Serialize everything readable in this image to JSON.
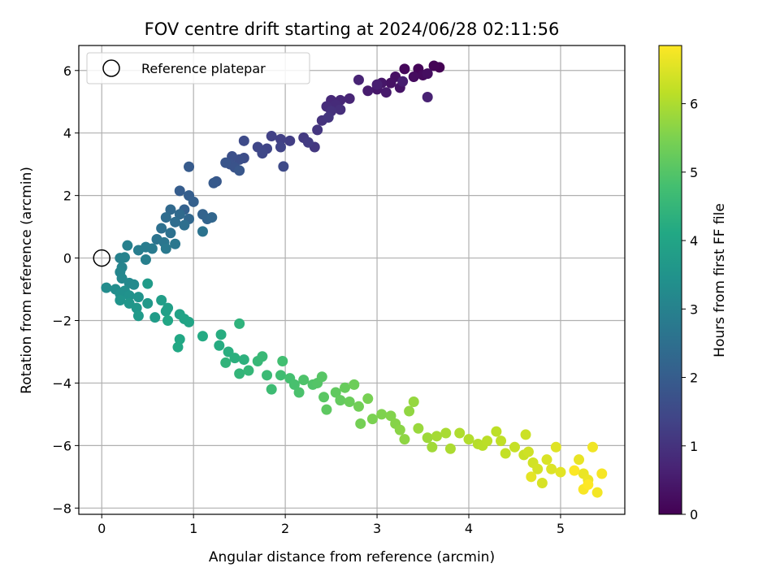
{
  "chart_data": {
    "type": "scatter",
    "title": "FOV centre drift starting at 2024/06/28 02:11:56",
    "xlabel": "Angular distance from reference (arcmin)",
    "ylabel": "Rotation from reference (arcmin)",
    "xlim": [
      -0.25,
      5.7
    ],
    "ylim": [
      -8.2,
      6.8
    ],
    "x_ticks": [
      0,
      1,
      2,
      3,
      4,
      5
    ],
    "y_ticks": [
      -8,
      -6,
      -4,
      -2,
      0,
      2,
      4,
      6
    ],
    "grid": true,
    "legend": {
      "location": "upper-left",
      "entries": [
        "Reference platepar"
      ]
    },
    "reference_point": {
      "x": 0,
      "y": 0,
      "label": "Reference platepar"
    },
    "colorbar": {
      "label": "Hours from first FF file",
      "colormap": "viridis",
      "range": [
        0,
        6.85
      ],
      "ticks": [
        0,
        1,
        2,
        3,
        4,
        5,
        6
      ]
    },
    "series": [
      {
        "color_by": "hours",
        "points": [
          [
            3.68,
            6.1,
            0.0
          ],
          [
            3.62,
            6.15,
            0.03
          ],
          [
            3.45,
            6.05,
            0.08
          ],
          [
            3.3,
            6.05,
            0.12
          ],
          [
            3.5,
            5.85,
            0.17
          ],
          [
            3.4,
            5.8,
            0.21
          ],
          [
            3.55,
            5.9,
            0.25
          ],
          [
            3.2,
            5.8,
            0.29
          ],
          [
            3.15,
            5.6,
            0.33
          ],
          [
            3.25,
            5.45,
            0.37
          ],
          [
            3.05,
            5.6,
            0.41
          ],
          [
            3.0,
            5.4,
            0.45
          ],
          [
            3.1,
            5.3,
            0.49
          ],
          [
            2.9,
            5.35,
            0.53
          ],
          [
            3.28,
            5.65,
            0.57
          ],
          [
            3.0,
            5.55,
            0.61
          ],
          [
            3.55,
            5.15,
            0.64
          ],
          [
            2.8,
            5.7,
            0.68
          ],
          [
            2.7,
            5.1,
            0.72
          ],
          [
            2.6,
            5.05,
            0.76
          ],
          [
            2.5,
            5.05,
            0.8
          ],
          [
            2.55,
            4.9,
            0.84
          ],
          [
            2.45,
            4.85,
            0.88
          ],
          [
            2.6,
            4.75,
            0.92
          ],
          [
            2.5,
            4.7,
            0.96
          ],
          [
            2.4,
            4.4,
            1.0
          ],
          [
            2.47,
            4.5,
            1.04
          ],
          [
            2.35,
            4.1,
            1.08
          ],
          [
            2.32,
            3.55,
            1.12
          ],
          [
            2.2,
            3.85,
            1.16
          ],
          [
            2.25,
            3.7,
            1.2
          ],
          [
            2.05,
            3.75,
            1.24
          ],
          [
            1.95,
            3.8,
            1.28
          ],
          [
            1.85,
            3.9,
            1.32
          ],
          [
            1.95,
            3.55,
            1.36
          ],
          [
            1.8,
            3.5,
            1.4
          ],
          [
            1.7,
            3.55,
            1.44
          ],
          [
            1.75,
            3.35,
            1.48
          ],
          [
            1.98,
            2.93,
            1.52
          ],
          [
            1.55,
            3.75,
            1.56
          ],
          [
            1.55,
            3.2,
            1.6
          ],
          [
            1.5,
            3.15,
            1.64
          ],
          [
            1.42,
            3.25,
            1.68
          ],
          [
            1.4,
            3.0,
            1.72
          ],
          [
            1.45,
            2.9,
            1.76
          ],
          [
            1.35,
            3.05,
            1.8
          ],
          [
            1.5,
            2.8,
            1.84
          ],
          [
            1.25,
            2.45,
            1.88
          ],
          [
            1.22,
            2.4,
            1.92
          ],
          [
            0.95,
            2.92,
            1.96
          ],
          [
            0.85,
            2.15,
            2.0
          ],
          [
            0.95,
            2.0,
            2.04
          ],
          [
            1.0,
            1.8,
            2.08
          ],
          [
            0.9,
            1.55,
            2.12
          ],
          [
            1.1,
            1.4,
            2.16
          ],
          [
            1.15,
            1.25,
            2.2
          ],
          [
            1.2,
            1.3,
            2.24
          ],
          [
            0.95,
            1.25,
            2.28
          ],
          [
            0.75,
            1.55,
            2.32
          ],
          [
            0.85,
            1.4,
            2.36
          ],
          [
            0.7,
            1.3,
            2.4
          ],
          [
            0.8,
            1.15,
            2.44
          ],
          [
            0.9,
            1.05,
            2.48
          ],
          [
            0.65,
            0.95,
            2.52
          ],
          [
            0.75,
            0.8,
            2.56
          ],
          [
            1.1,
            0.85,
            2.6
          ],
          [
            0.6,
            0.6,
            2.64
          ],
          [
            0.68,
            0.5,
            2.68
          ],
          [
            0.8,
            0.45,
            2.72
          ],
          [
            0.7,
            0.3,
            2.76
          ],
          [
            0.55,
            0.3,
            2.8
          ],
          [
            0.48,
            0.35,
            2.84
          ],
          [
            0.4,
            0.25,
            2.88
          ],
          [
            0.48,
            -0.05,
            2.92
          ],
          [
            0.28,
            0.4,
            2.96
          ],
          [
            0.2,
            0.0,
            3.0
          ],
          [
            0.25,
            0.02,
            3.04
          ],
          [
            0.22,
            -0.3,
            3.08
          ],
          [
            0.2,
            -0.45,
            3.12
          ],
          [
            0.22,
            -0.65,
            3.16
          ],
          [
            0.3,
            -0.8,
            3.2
          ],
          [
            0.35,
            -0.85,
            3.24
          ],
          [
            0.05,
            -0.95,
            3.28
          ],
          [
            0.15,
            -1.0,
            3.32
          ],
          [
            0.25,
            -1.05,
            3.36
          ],
          [
            0.2,
            -1.15,
            3.4
          ],
          [
            0.3,
            -1.2,
            3.44
          ],
          [
            0.4,
            -1.25,
            3.48
          ],
          [
            0.2,
            -1.35,
            3.52
          ],
          [
            0.3,
            -1.45,
            3.56
          ],
          [
            0.38,
            -1.6,
            3.6
          ],
          [
            0.5,
            -1.45,
            3.64
          ],
          [
            0.4,
            -1.85,
            3.68
          ],
          [
            0.5,
            -0.82,
            3.72
          ],
          [
            0.58,
            -1.9,
            3.76
          ],
          [
            0.65,
            -1.35,
            3.8
          ],
          [
            0.72,
            -1.6,
            3.84
          ],
          [
            0.7,
            -1.7,
            3.88
          ],
          [
            0.85,
            -1.8,
            3.92
          ],
          [
            0.9,
            -1.95,
            3.96
          ],
          [
            0.95,
            -2.05,
            4.0
          ],
          [
            0.72,
            -2.0,
            4.04
          ],
          [
            0.85,
            -2.6,
            4.08
          ],
          [
            0.83,
            -2.85,
            4.12
          ],
          [
            1.1,
            -2.5,
            4.16
          ],
          [
            1.28,
            -2.8,
            4.2
          ],
          [
            1.3,
            -2.45,
            4.24
          ],
          [
            1.38,
            -3.0,
            4.28
          ],
          [
            1.45,
            -3.2,
            4.32
          ],
          [
            1.55,
            -3.25,
            4.36
          ],
          [
            1.5,
            -2.1,
            4.4
          ],
          [
            1.35,
            -3.35,
            4.44
          ],
          [
            1.5,
            -3.7,
            4.48
          ],
          [
            1.6,
            -3.6,
            4.52
          ],
          [
            1.7,
            -3.3,
            4.56
          ],
          [
            1.75,
            -3.15,
            4.6
          ],
          [
            1.8,
            -3.75,
            4.64
          ],
          [
            1.85,
            -4.2,
            4.68
          ],
          [
            1.95,
            -3.75,
            4.72
          ],
          [
            1.97,
            -3.3,
            4.76
          ],
          [
            2.05,
            -3.85,
            4.8
          ],
          [
            2.1,
            -4.05,
            4.84
          ],
          [
            2.15,
            -4.3,
            4.88
          ],
          [
            2.2,
            -3.9,
            4.92
          ],
          [
            2.3,
            -4.05,
            4.96
          ],
          [
            2.35,
            -4.0,
            5.0
          ],
          [
            2.4,
            -3.8,
            5.04
          ],
          [
            2.42,
            -4.45,
            5.08
          ],
          [
            2.45,
            -4.85,
            5.12
          ],
          [
            2.55,
            -4.3,
            5.16
          ],
          [
            2.6,
            -4.55,
            5.2
          ],
          [
            2.65,
            -4.15,
            5.24
          ],
          [
            2.7,
            -4.6,
            5.28
          ],
          [
            2.75,
            -4.05,
            5.32
          ],
          [
            2.8,
            -4.75,
            5.36
          ],
          [
            2.82,
            -5.3,
            5.4
          ],
          [
            2.9,
            -4.5,
            5.44
          ],
          [
            2.95,
            -5.15,
            5.48
          ],
          [
            3.05,
            -5.0,
            5.52
          ],
          [
            3.15,
            -5.05,
            5.56
          ],
          [
            3.2,
            -5.3,
            5.6
          ],
          [
            3.25,
            -5.5,
            5.64
          ],
          [
            3.3,
            -5.8,
            5.68
          ],
          [
            3.35,
            -4.9,
            5.72
          ],
          [
            3.4,
            -4.6,
            5.76
          ],
          [
            3.45,
            -5.45,
            5.8
          ],
          [
            3.55,
            -5.75,
            5.84
          ],
          [
            3.6,
            -6.05,
            5.88
          ],
          [
            3.65,
            -5.7,
            5.92
          ],
          [
            3.75,
            -5.6,
            5.96
          ],
          [
            3.8,
            -6.1,
            5.99
          ],
          [
            3.9,
            -5.6,
            6.02
          ],
          [
            4.0,
            -5.8,
            6.05
          ],
          [
            4.1,
            -5.95,
            6.08
          ],
          [
            4.15,
            -6.0,
            6.11
          ],
          [
            4.2,
            -5.85,
            6.14
          ],
          [
            4.3,
            -5.55,
            6.17
          ],
          [
            4.35,
            -5.85,
            6.2
          ],
          [
            4.4,
            -6.25,
            6.23
          ],
          [
            4.5,
            -6.05,
            6.26
          ],
          [
            4.6,
            -6.3,
            6.29
          ],
          [
            4.62,
            -5.65,
            6.32
          ],
          [
            4.65,
            -6.2,
            6.35
          ],
          [
            4.7,
            -6.55,
            6.38
          ],
          [
            4.75,
            -6.75,
            6.41
          ],
          [
            4.8,
            -7.2,
            6.44
          ],
          [
            4.85,
            -6.45,
            6.47
          ],
          [
            4.9,
            -6.75,
            6.5
          ],
          [
            4.95,
            -6.05,
            6.53
          ],
          [
            5.0,
            -6.85,
            6.56
          ],
          [
            4.68,
            -7.0,
            6.59
          ],
          [
            5.2,
            -6.45,
            6.62
          ],
          [
            5.25,
            -6.9,
            6.65
          ],
          [
            5.3,
            -7.1,
            6.68
          ],
          [
            5.35,
            -6.05,
            6.71
          ],
          [
            5.4,
            -7.5,
            6.74
          ],
          [
            5.45,
            -6.9,
            6.77
          ],
          [
            5.25,
            -7.4,
            6.8
          ],
          [
            5.15,
            -6.8,
            6.83
          ],
          [
            5.3,
            -7.25,
            6.85
          ]
        ]
      }
    ]
  }
}
